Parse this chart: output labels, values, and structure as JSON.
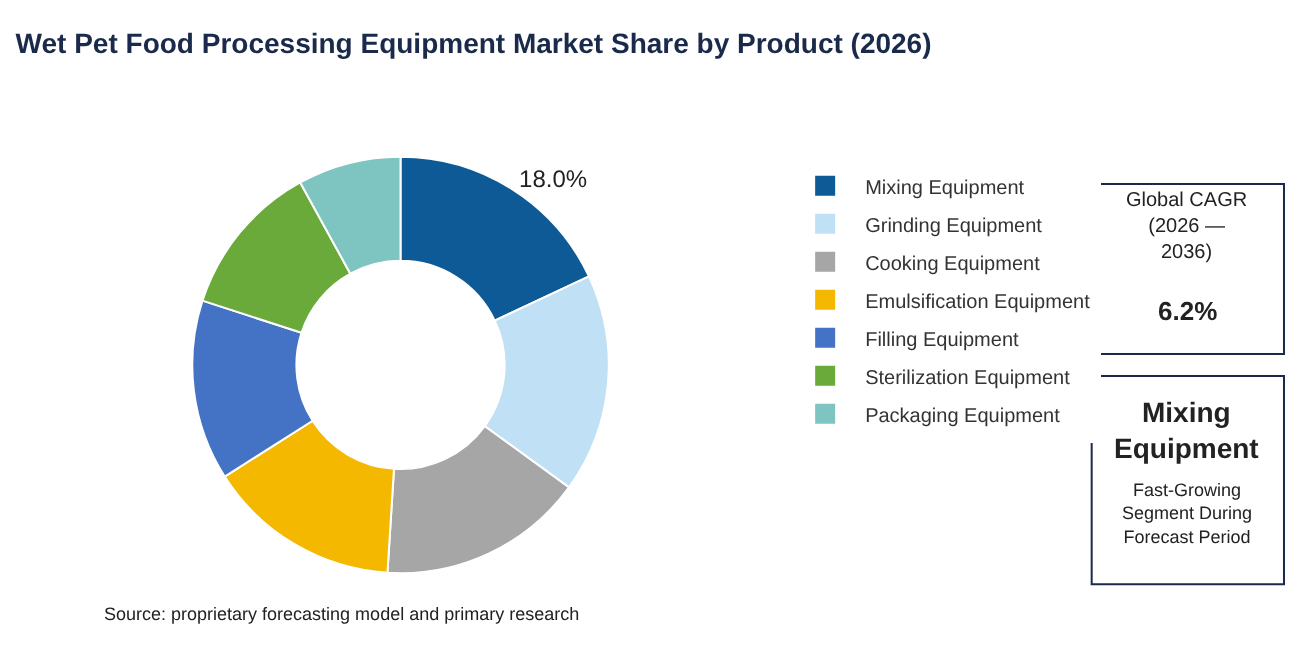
{
  "chart_data": {
    "type": "donut",
    "title": "Wet Pet Food Processing Equipment Market Share by Product (2026)",
    "categories": [
      "Mixing Equipment",
      "Grinding Equipment",
      "Cooking Equipment",
      "Emulsification Equipment",
      "Filling Equipment",
      "Sterilization Equipment",
      "Packaging Equipment"
    ],
    "values": [
      18,
      17,
      16,
      15,
      14,
      12,
      8
    ],
    "colors": [
      "#0d5a96",
      "#bfe0f5",
      "#a6a6a6",
      "#f5b800",
      "#4472c4",
      "#6aaa3a",
      "#7ec4c0"
    ],
    "value_labels": [
      "18.0%",
      null,
      null,
      null,
      null,
      null,
      null
    ],
    "legend": "right",
    "annotations": [
      "Source: proprietary forecasting model and primary research",
      "Global CAGR (2026 — 2036)",
      "6.2%",
      "Mixing Equipment",
      "Fast-Growing Segment During Forecast Period"
    ]
  }
}
